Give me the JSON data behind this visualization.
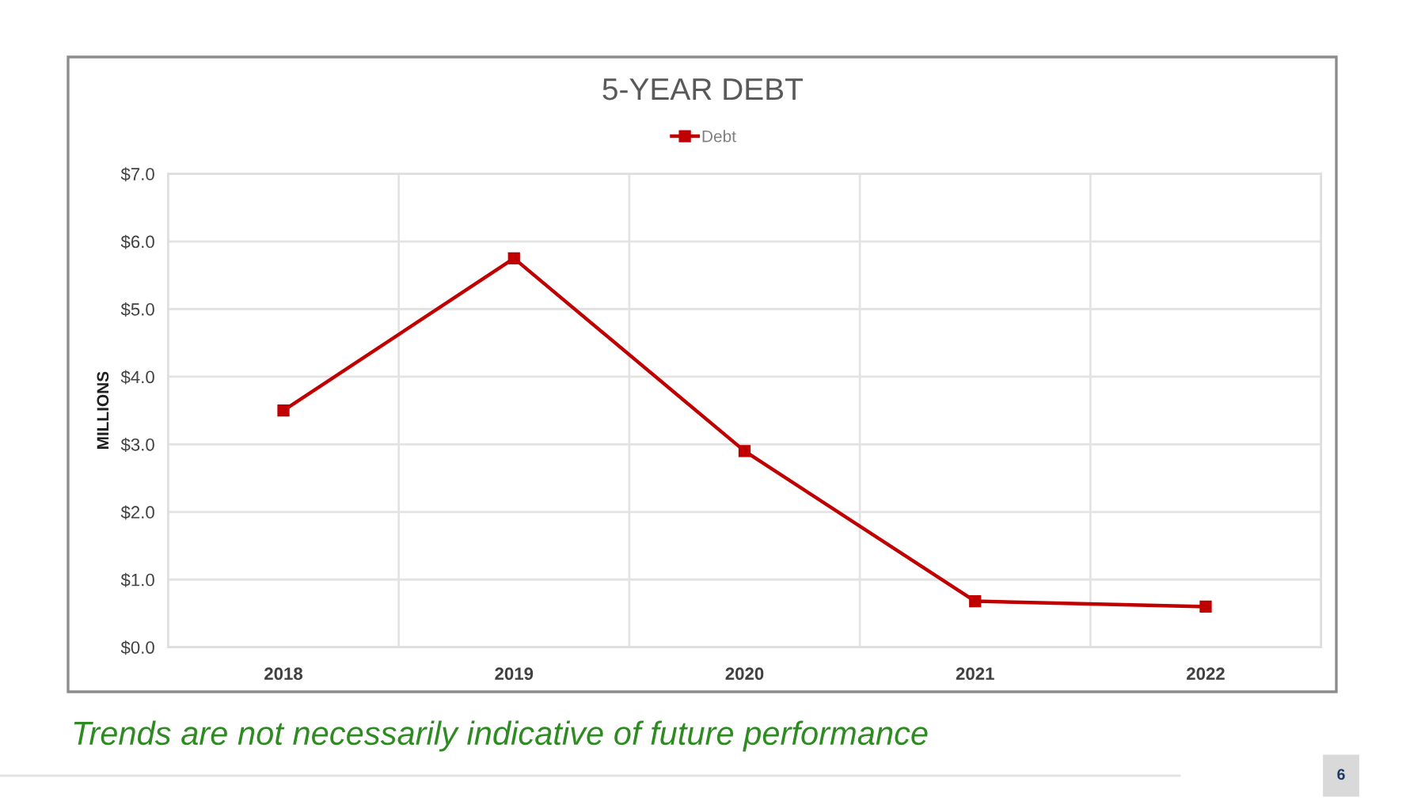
{
  "chart_data": {
    "type": "line",
    "title": "5-YEAR DEBT",
    "ylabel": "MILLIONS",
    "categories": [
      "2018",
      "2019",
      "2020",
      "2021",
      "2022"
    ],
    "series": [
      {
        "name": "Debt",
        "color": "#c00000",
        "values": [
          3.5,
          5.75,
          2.9,
          0.68,
          0.6
        ]
      }
    ],
    "ylim": [
      0,
      7
    ],
    "yticks": [
      {
        "value": 0,
        "label": "$0.0"
      },
      {
        "value": 1,
        "label": "$1.0"
      },
      {
        "value": 2,
        "label": "$2.0"
      },
      {
        "value": 3,
        "label": "$3.0"
      },
      {
        "value": 4,
        "label": "$4.0"
      },
      {
        "value": 5,
        "label": "$5.0"
      },
      {
        "value": 6,
        "label": "$6.0"
      },
      {
        "value": 7,
        "label": "$7.0"
      }
    ],
    "grid": true,
    "legend": "top",
    "marker": "square",
    "line_style": "solid",
    "annotations": [
      "Trends are not necessarily indicative of future performance",
      "6"
    ]
  }
}
